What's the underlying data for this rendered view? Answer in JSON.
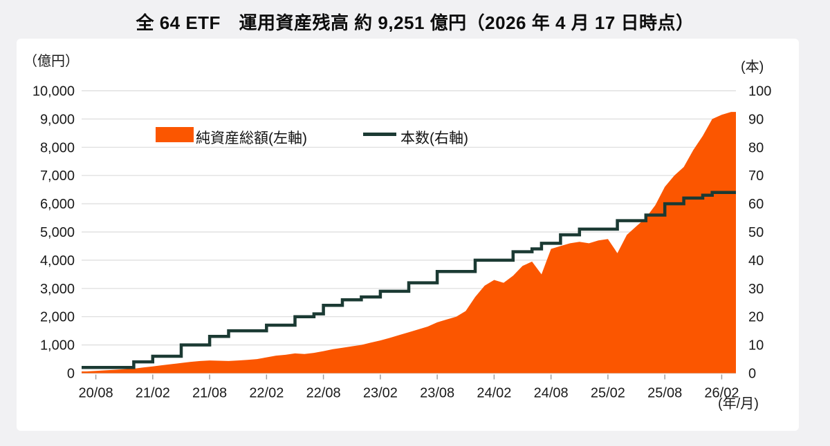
{
  "title": "全 64 ETF　運用資産残高 約 9,251 億円（2026 年 4 月 17 日時点）",
  "colors": {
    "area": "#FB5600",
    "line": "#1B3A33",
    "grid": "#DCDCDC",
    "axis_line": "#C9C9C9",
    "tick_mark": "#9E9E9E",
    "axis_text": "#1A1A1A",
    "page_bg": "#F1F1F3",
    "card_bg": "#FFFFFF"
  },
  "legend": [
    {
      "label": "純資産総額(左軸)",
      "type": "area"
    },
    {
      "label": "本数(右軸)",
      "type": "line"
    }
  ],
  "chart_data": {
    "type": "area+step-line combo",
    "title": "全 64 ETF　運用資産残高 約 9,251 億円（2026 年 4 月 17 日時点）",
    "grid": "horizontal only",
    "legend_position": "top inside plot",
    "left_axis": {
      "unit_label": "（億円）",
      "min": 0,
      "max": 10000,
      "tick_step": 1000,
      "tick_labels": [
        "0",
        "1,000",
        "2,000",
        "3,000",
        "4,000",
        "5,000",
        "6,000",
        "7,000",
        "8,000",
        "9,000",
        "10,000"
      ]
    },
    "right_axis": {
      "unit_label": "(本)",
      "min": 0,
      "max": 100,
      "tick_step": 10,
      "tick_labels": [
        "0",
        "10",
        "20",
        "30",
        "40",
        "50",
        "60",
        "70",
        "80",
        "90",
        "100"
      ]
    },
    "x_axis": {
      "unit_label": "(年/月)",
      "start_month": "2020/08",
      "end_month": "2026/04",
      "tick_labels": [
        "20/08",
        "21/02",
        "21/08",
        "22/02",
        "22/08",
        "23/02",
        "23/08",
        "24/02",
        "24/08",
        "25/02",
        "25/08",
        "26/02"
      ]
    },
    "series": [
      {
        "name": "純資産総額(左軸)",
        "type": "area",
        "axis": "left",
        "unit": "億円",
        "color": "#FB5600",
        "points": [
          [
            "2020/08",
            60
          ],
          [
            "2020/09",
            80
          ],
          [
            "2020/10",
            100
          ],
          [
            "2020/11",
            120
          ],
          [
            "2020/12",
            140
          ],
          [
            "2021/01",
            160
          ],
          [
            "2021/02",
            200
          ],
          [
            "2021/03",
            240
          ],
          [
            "2021/04",
            280
          ],
          [
            "2021/05",
            320
          ],
          [
            "2021/06",
            360
          ],
          [
            "2021/07",
            400
          ],
          [
            "2021/08",
            430
          ],
          [
            "2021/09",
            450
          ],
          [
            "2021/10",
            440
          ],
          [
            "2021/11",
            430
          ],
          [
            "2021/12",
            450
          ],
          [
            "2022/01",
            470
          ],
          [
            "2022/02",
            500
          ],
          [
            "2022/03",
            560
          ],
          [
            "2022/04",
            620
          ],
          [
            "2022/05",
            650
          ],
          [
            "2022/06",
            700
          ],
          [
            "2022/07",
            680
          ],
          [
            "2022/08",
            720
          ],
          [
            "2022/09",
            780
          ],
          [
            "2022/10",
            850
          ],
          [
            "2022/11",
            900
          ],
          [
            "2022/12",
            950
          ],
          [
            "2023/01",
            1000
          ],
          [
            "2023/02",
            1080
          ],
          [
            "2023/03",
            1160
          ],
          [
            "2023/04",
            1250
          ],
          [
            "2023/05",
            1350
          ],
          [
            "2023/06",
            1450
          ],
          [
            "2023/07",
            1550
          ],
          [
            "2023/08",
            1650
          ],
          [
            "2023/09",
            1800
          ],
          [
            "2023/10",
            1900
          ],
          [
            "2023/11",
            2000
          ],
          [
            "2023/12",
            2200
          ],
          [
            "2024/01",
            2700
          ],
          [
            "2024/02",
            3100
          ],
          [
            "2024/03",
            3300
          ],
          [
            "2024/04",
            3200
          ],
          [
            "2024/05",
            3450
          ],
          [
            "2024/06",
            3800
          ],
          [
            "2024/07",
            3950
          ],
          [
            "2024/08",
            3500
          ],
          [
            "2024/09",
            4400
          ],
          [
            "2024/10",
            4500
          ],
          [
            "2024/11",
            4600
          ],
          [
            "2024/12",
            4650
          ],
          [
            "2025/01",
            4600
          ],
          [
            "2025/02",
            4700
          ],
          [
            "2025/03",
            4750
          ],
          [
            "2025/04",
            4250
          ],
          [
            "2025/05",
            4900
          ],
          [
            "2025/06",
            5200
          ],
          [
            "2025/07",
            5500
          ],
          [
            "2025/08",
            5950
          ],
          [
            "2025/09",
            6600
          ],
          [
            "2025/10",
            7000
          ],
          [
            "2025/11",
            7300
          ],
          [
            "2025/12",
            7900
          ],
          [
            "2026/01",
            8400
          ],
          [
            "2026/02",
            9000
          ],
          [
            "2026/03",
            9150
          ],
          [
            "2026/04",
            9251
          ]
        ]
      },
      {
        "name": "本数(右軸)",
        "type": "step-line",
        "axis": "right",
        "unit": "本",
        "color": "#1B3A33",
        "points": [
          [
            "2020/08",
            2
          ],
          [
            "2021/01",
            4
          ],
          [
            "2021/03",
            6
          ],
          [
            "2021/06",
            10
          ],
          [
            "2021/09",
            13
          ],
          [
            "2021/11",
            15
          ],
          [
            "2022/03",
            17
          ],
          [
            "2022/06",
            20
          ],
          [
            "2022/08",
            21
          ],
          [
            "2022/09",
            24
          ],
          [
            "2022/11",
            26
          ],
          [
            "2023/01",
            27
          ],
          [
            "2023/03",
            29
          ],
          [
            "2023/06",
            32
          ],
          [
            "2023/09",
            36
          ],
          [
            "2024/01",
            40
          ],
          [
            "2024/05",
            43
          ],
          [
            "2024/07",
            44
          ],
          [
            "2024/08",
            46
          ],
          [
            "2024/10",
            49
          ],
          [
            "2024/12",
            51
          ],
          [
            "2025/04",
            54
          ],
          [
            "2025/07",
            56
          ],
          [
            "2025/09",
            60
          ],
          [
            "2025/11",
            62
          ],
          [
            "2026/01",
            63
          ],
          [
            "2026/02",
            64
          ]
        ]
      }
    ]
  }
}
